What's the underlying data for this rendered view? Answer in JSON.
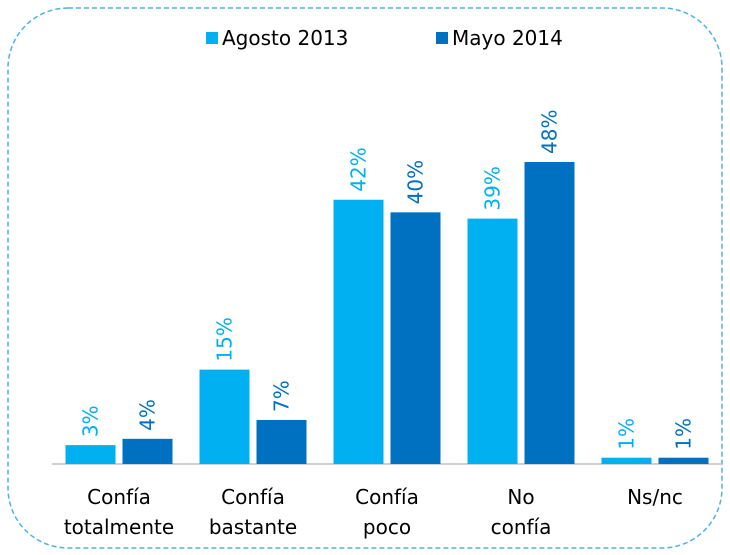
{
  "chart_data": {
    "type": "bar",
    "categories": [
      "Confía totalmente",
      "Confía bastante",
      "Confía poco",
      "No confía",
      "Ns/nc"
    ],
    "series": [
      {
        "name": "Agosto 2013",
        "color": "#00b0f0",
        "values": [
          3,
          15,
          42,
          39,
          1
        ],
        "value_labels": [
          "3%",
          "15%",
          "42%",
          "39%",
          "1%"
        ]
      },
      {
        "name": "Mayo 2014",
        "color": "#0070c0",
        "values": [
          4,
          7,
          40,
          48,
          1
        ],
        "value_labels": [
          "4%",
          "7%",
          "40%",
          "48%",
          "1%"
        ]
      }
    ],
    "legend": "top"
  }
}
